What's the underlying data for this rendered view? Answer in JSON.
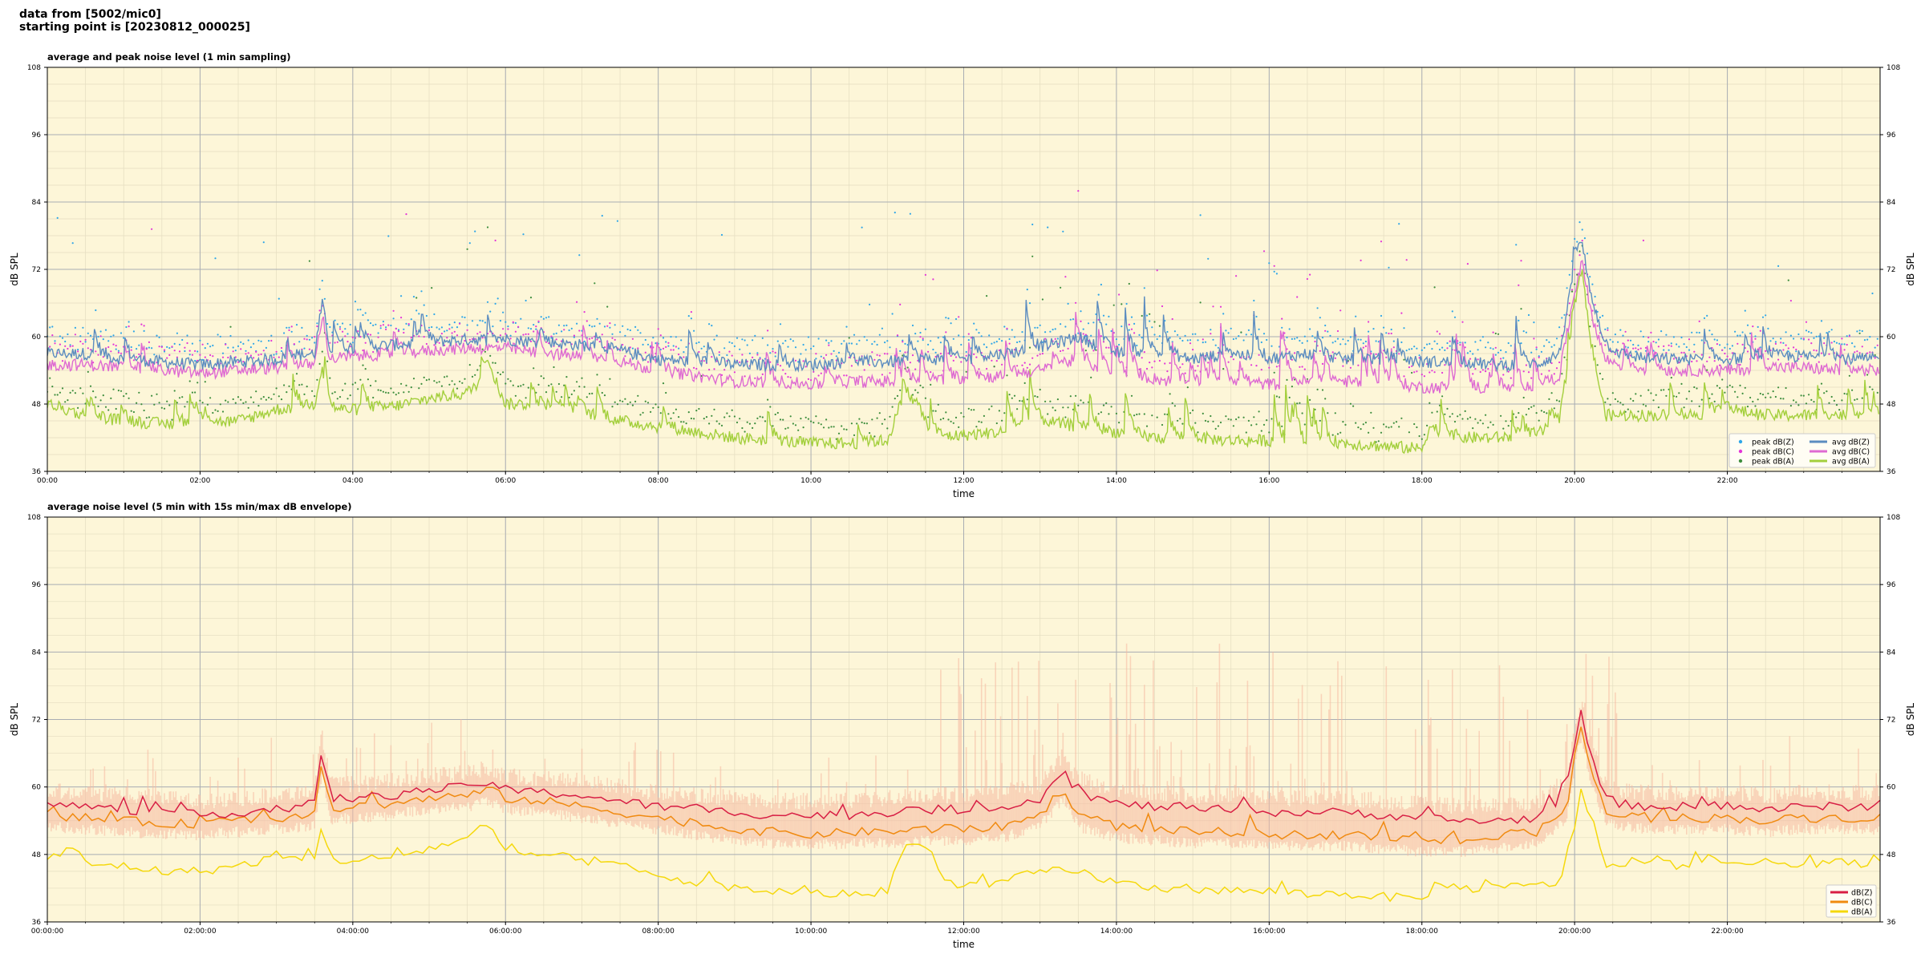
{
  "header": {
    "line1": "data from [5002/mic0]",
    "line2": "starting point is [20230812_000025]"
  },
  "colors": {
    "background": "#fdf6d8",
    "grid_major": "#a9adb3",
    "grid_minor": "#e4ddc0",
    "avg_z": "#5b8cc0",
    "avg_c": "#de6ad2",
    "avg_a": "#a3cf3c",
    "peak_z": "#2fa6e8",
    "peak_c": "#e335d8",
    "peak_a": "#3e8e3e",
    "env_z": "#d81e44",
    "env_c": "#f08a10",
    "env_a": "#f5d80c",
    "envelope_fill": "#f6b8a0"
  },
  "chart_data": [
    {
      "type": "line",
      "title": "average and peak noise level (1 min sampling)",
      "xlabel": "time",
      "ylabel": "dB SPL",
      "ylabel_right": "dB SPL",
      "ylim": [
        36,
        108
      ],
      "xlim_hours": [
        0,
        24
      ],
      "yticks": [
        "36",
        "48",
        "60",
        "72",
        "84",
        "96",
        "108"
      ],
      "xticks": [
        "00:00",
        "02:00",
        "04:00",
        "06:00",
        "08:00",
        "10:00",
        "12:00",
        "14:00",
        "16:00",
        "18:00",
        "20:00",
        "22:00"
      ],
      "grid": true,
      "legend_position": "lower-right",
      "legend": [
        "peak dB(Z)",
        "peak dB(C)",
        "peak dB(A)",
        "avg dB(Z)",
        "avg dB(C)",
        "avg dB(A)"
      ],
      "series": [
        {
          "name": "avg dB(Z)",
          "kind": "line",
          "x_hours": [
            0,
            0.5,
            1,
            1.5,
            2,
            2.5,
            3,
            3.5,
            3.6,
            3.7,
            4,
            4.5,
            5,
            5.5,
            6,
            6.5,
            7,
            7.5,
            8,
            8.5,
            9,
            9.5,
            10,
            10.5,
            11,
            11.5,
            12,
            12.5,
            13,
            13.5,
            14,
            14.5,
            15,
            15.5,
            16,
            16.5,
            17,
            17.5,
            18,
            18.5,
            19,
            19.5,
            19.8,
            20,
            20.1,
            20.2,
            20.4,
            20.6,
            21,
            21.5,
            22,
            22.5,
            23,
            23.5,
            24
          ],
          "values": [
            57,
            57,
            56,
            55.5,
            55,
            55.5,
            56,
            57,
            66,
            58,
            58,
            58.5,
            59,
            59.5,
            59.5,
            59,
            58.5,
            57.5,
            56,
            55.5,
            55,
            55,
            55,
            55.5,
            55.5,
            56,
            56,
            57,
            58,
            60,
            57,
            57,
            56,
            57,
            56,
            57,
            56,
            56,
            55.5,
            55.5,
            55,
            55,
            57,
            72,
            76,
            68,
            59,
            57,
            56,
            56,
            56,
            56.5,
            56.5,
            56,
            56
          ]
        },
        {
          "name": "avg dB(C)",
          "kind": "line",
          "x_hours": [
            0,
            0.5,
            1,
            1.5,
            2,
            2.5,
            3,
            3.5,
            3.6,
            3.7,
            4,
            4.5,
            5,
            5.5,
            6,
            6.5,
            7,
            7.5,
            8,
            8.5,
            9,
            9.5,
            10,
            10.5,
            11,
            11.5,
            12,
            12.5,
            13,
            13.5,
            14,
            14.5,
            15,
            15.5,
            16,
            16.5,
            17,
            17.5,
            18,
            18.5,
            19,
            19.5,
            19.8,
            20,
            20.1,
            20.2,
            20.4,
            20.6,
            21,
            21.5,
            22,
            22.5,
            23,
            23.5,
            24
          ],
          "values": [
            55,
            55,
            54.5,
            54,
            53.5,
            54,
            54.5,
            55,
            64,
            56,
            56.5,
            57,
            57.5,
            58,
            58,
            57,
            56.5,
            55.5,
            54,
            53,
            52,
            52,
            51.5,
            52,
            52,
            52.5,
            52.5,
            53,
            54,
            56,
            53,
            52.5,
            51.5,
            52,
            51.5,
            52,
            52,
            51.5,
            51,
            51,
            50.5,
            51,
            53,
            68,
            74,
            65,
            56,
            55,
            54,
            54,
            54,
            54.5,
            54.5,
            54,
            54
          ]
        },
        {
          "name": "avg dB(A)",
          "kind": "line",
          "x_hours": [
            0,
            0.5,
            1,
            1.5,
            2,
            2.5,
            3,
            3.5,
            3.6,
            3.7,
            4,
            4.5,
            5,
            5.5,
            5.8,
            6,
            6.5,
            7,
            7.5,
            8,
            8.5,
            9,
            9.5,
            10,
            10.5,
            11,
            11.2,
            11.4,
            11.6,
            12,
            12.5,
            13,
            13.5,
            14,
            14.5,
            15,
            15.5,
            16,
            16.5,
            17,
            17.5,
            18,
            18.1,
            18.5,
            19,
            19.5,
            19.8,
            20,
            20.1,
            20.2,
            20.4,
            20.6,
            21,
            21.5,
            22,
            22.5,
            23,
            23.5,
            24
          ],
          "values": [
            48,
            46,
            45,
            44.5,
            44.5,
            45,
            47,
            48,
            55,
            47,
            47,
            47.5,
            49,
            50,
            54,
            48,
            48,
            46.5,
            45,
            44,
            43,
            42,
            41.5,
            41,
            41,
            41.5,
            49,
            48,
            42,
            42.5,
            43,
            45,
            44,
            43,
            42,
            42,
            41.5,
            41.5,
            41,
            41,
            40.5,
            40,
            44,
            42,
            42,
            42.5,
            45,
            63,
            72,
            60,
            46,
            46,
            46,
            46,
            47,
            46,
            46,
            46,
            46
          ]
        },
        {
          "name": "peak dB(Z)",
          "kind": "scatter"
        },
        {
          "name": "peak dB(C)",
          "kind": "scatter"
        },
        {
          "name": "peak dB(A)",
          "kind": "scatter"
        }
      ]
    },
    {
      "type": "line",
      "title": "average noise level (5 min with 15s min/max dB envelope)",
      "xlabel": "time",
      "ylabel": "dB SPL",
      "ylabel_right": "dB SPL",
      "ylim": [
        36,
        108
      ],
      "xlim_hours": [
        0,
        24
      ],
      "yticks": [
        "36",
        "48",
        "60",
        "72",
        "84",
        "96",
        "108"
      ],
      "xticks": [
        "00:00:00",
        "02:00:00",
        "04:00:00",
        "06:00:00",
        "08:00:00",
        "10:00:00",
        "12:00:00",
        "14:00:00",
        "16:00:00",
        "18:00:00",
        "20:00:00",
        "22:00:00"
      ],
      "grid": true,
      "legend_position": "lower-right",
      "legend": [
        "dB(Z)",
        "dB(C)",
        "dB(A)"
      ],
      "series": [
        {
          "name": "dB(Z)",
          "x_hours": [
            0,
            0.5,
            1,
            1.5,
            2,
            2.5,
            3,
            3.5,
            3.6,
            3.7,
            4,
            4.5,
            5,
            5.5,
            5.8,
            6,
            6.5,
            7,
            7.5,
            8,
            8.5,
            9,
            9.5,
            10,
            10.5,
            11,
            11.5,
            12,
            12.5,
            13,
            13.3,
            13.5,
            14,
            14.5,
            15,
            15.5,
            16,
            16.5,
            17,
            17.5,
            18,
            18.5,
            19,
            19.5,
            19.9,
            20,
            20.1,
            20.2,
            20.4,
            20.6,
            21,
            21.5,
            22,
            22.5,
            23,
            23.5,
            24
          ],
          "values": [
            57,
            56.5,
            56,
            55.5,
            55,
            55.5,
            56,
            57,
            67,
            58,
            58,
            58.5,
            59.5,
            60,
            61,
            59.5,
            59,
            58.5,
            57.5,
            56.5,
            56,
            55.5,
            55,
            55,
            55,
            55.5,
            56,
            56,
            56.5,
            58,
            63,
            59,
            57,
            56.5,
            56,
            56,
            55.5,
            55.5,
            55.5,
            55,
            54.5,
            54,
            54,
            54.5,
            59,
            68,
            73,
            66,
            58,
            57,
            56.5,
            56.5,
            56.5,
            56,
            56.5,
            56.5,
            56.5
          ]
        },
        {
          "name": "dB(C)",
          "x_hours": [
            0,
            0.5,
            1,
            1.5,
            2,
            2.5,
            3,
            3.5,
            3.6,
            3.7,
            4,
            4.5,
            5,
            5.5,
            5.8,
            6,
            6.5,
            7,
            7.5,
            8,
            8.5,
            9,
            9.5,
            10,
            10.5,
            11,
            11.5,
            12,
            12.5,
            13,
            13.3,
            13.5,
            14,
            14.5,
            15,
            15.5,
            16,
            16.5,
            17,
            17.5,
            18,
            18.5,
            19,
            19.5,
            19.9,
            20,
            20.1,
            20.2,
            20.4,
            20.6,
            21,
            21.5,
            22,
            22.5,
            23,
            23.5,
            24
          ],
          "values": [
            55,
            54.5,
            54,
            53.5,
            53.5,
            54,
            54.5,
            55,
            65,
            56,
            56.5,
            57,
            58,
            58.5,
            59.5,
            58,
            57.5,
            56.5,
            55.5,
            54.5,
            53.5,
            52.5,
            52,
            51.5,
            52,
            52,
            52.5,
            52.5,
            53,
            55,
            60,
            55,
            53,
            52.5,
            52,
            52,
            51.5,
            51.5,
            51.5,
            51,
            50.5,
            50.5,
            51,
            52,
            56,
            66,
            71,
            63,
            56,
            55,
            54.5,
            54.5,
            54.5,
            54,
            54.5,
            54.5,
            54.5
          ]
        },
        {
          "name": "dB(A)",
          "x_hours": [
            0,
            0.3,
            0.6,
            1,
            1.5,
            2,
            2.5,
            3,
            3.5,
            3.6,
            3.7,
            4,
            4.5,
            5,
            5.5,
            5.8,
            6,
            6.5,
            7,
            7.5,
            8,
            8.5,
            9,
            9.5,
            10,
            10.5,
            11,
            11.2,
            11.5,
            11.8,
            12,
            12.5,
            13,
            13.5,
            14,
            14.5,
            15,
            15.5,
            16,
            16.5,
            17,
            17.5,
            18,
            18.2,
            18.5,
            19,
            19.5,
            19.8,
            20,
            20.1,
            20.2,
            20.4,
            20.6,
            21,
            21.5,
            22,
            22.5,
            23,
            23.5,
            24
          ],
          "values": [
            47,
            49,
            46,
            46,
            45,
            45,
            46,
            47.5,
            47,
            53,
            47,
            47,
            47.5,
            49,
            51,
            53,
            48,
            48,
            47,
            46,
            44,
            43,
            42,
            41.5,
            41,
            41,
            41.5,
            49,
            50,
            43,
            42.5,
            43,
            45,
            45,
            43,
            42,
            42,
            41.5,
            41.5,
            41,
            41,
            40.5,
            40,
            43,
            42,
            42,
            42.5,
            43,
            53,
            61,
            54,
            46,
            46,
            46.5,
            46,
            46.5,
            46.5,
            46.5,
            46.5,
            46.5
          ]
        }
      ]
    }
  ]
}
